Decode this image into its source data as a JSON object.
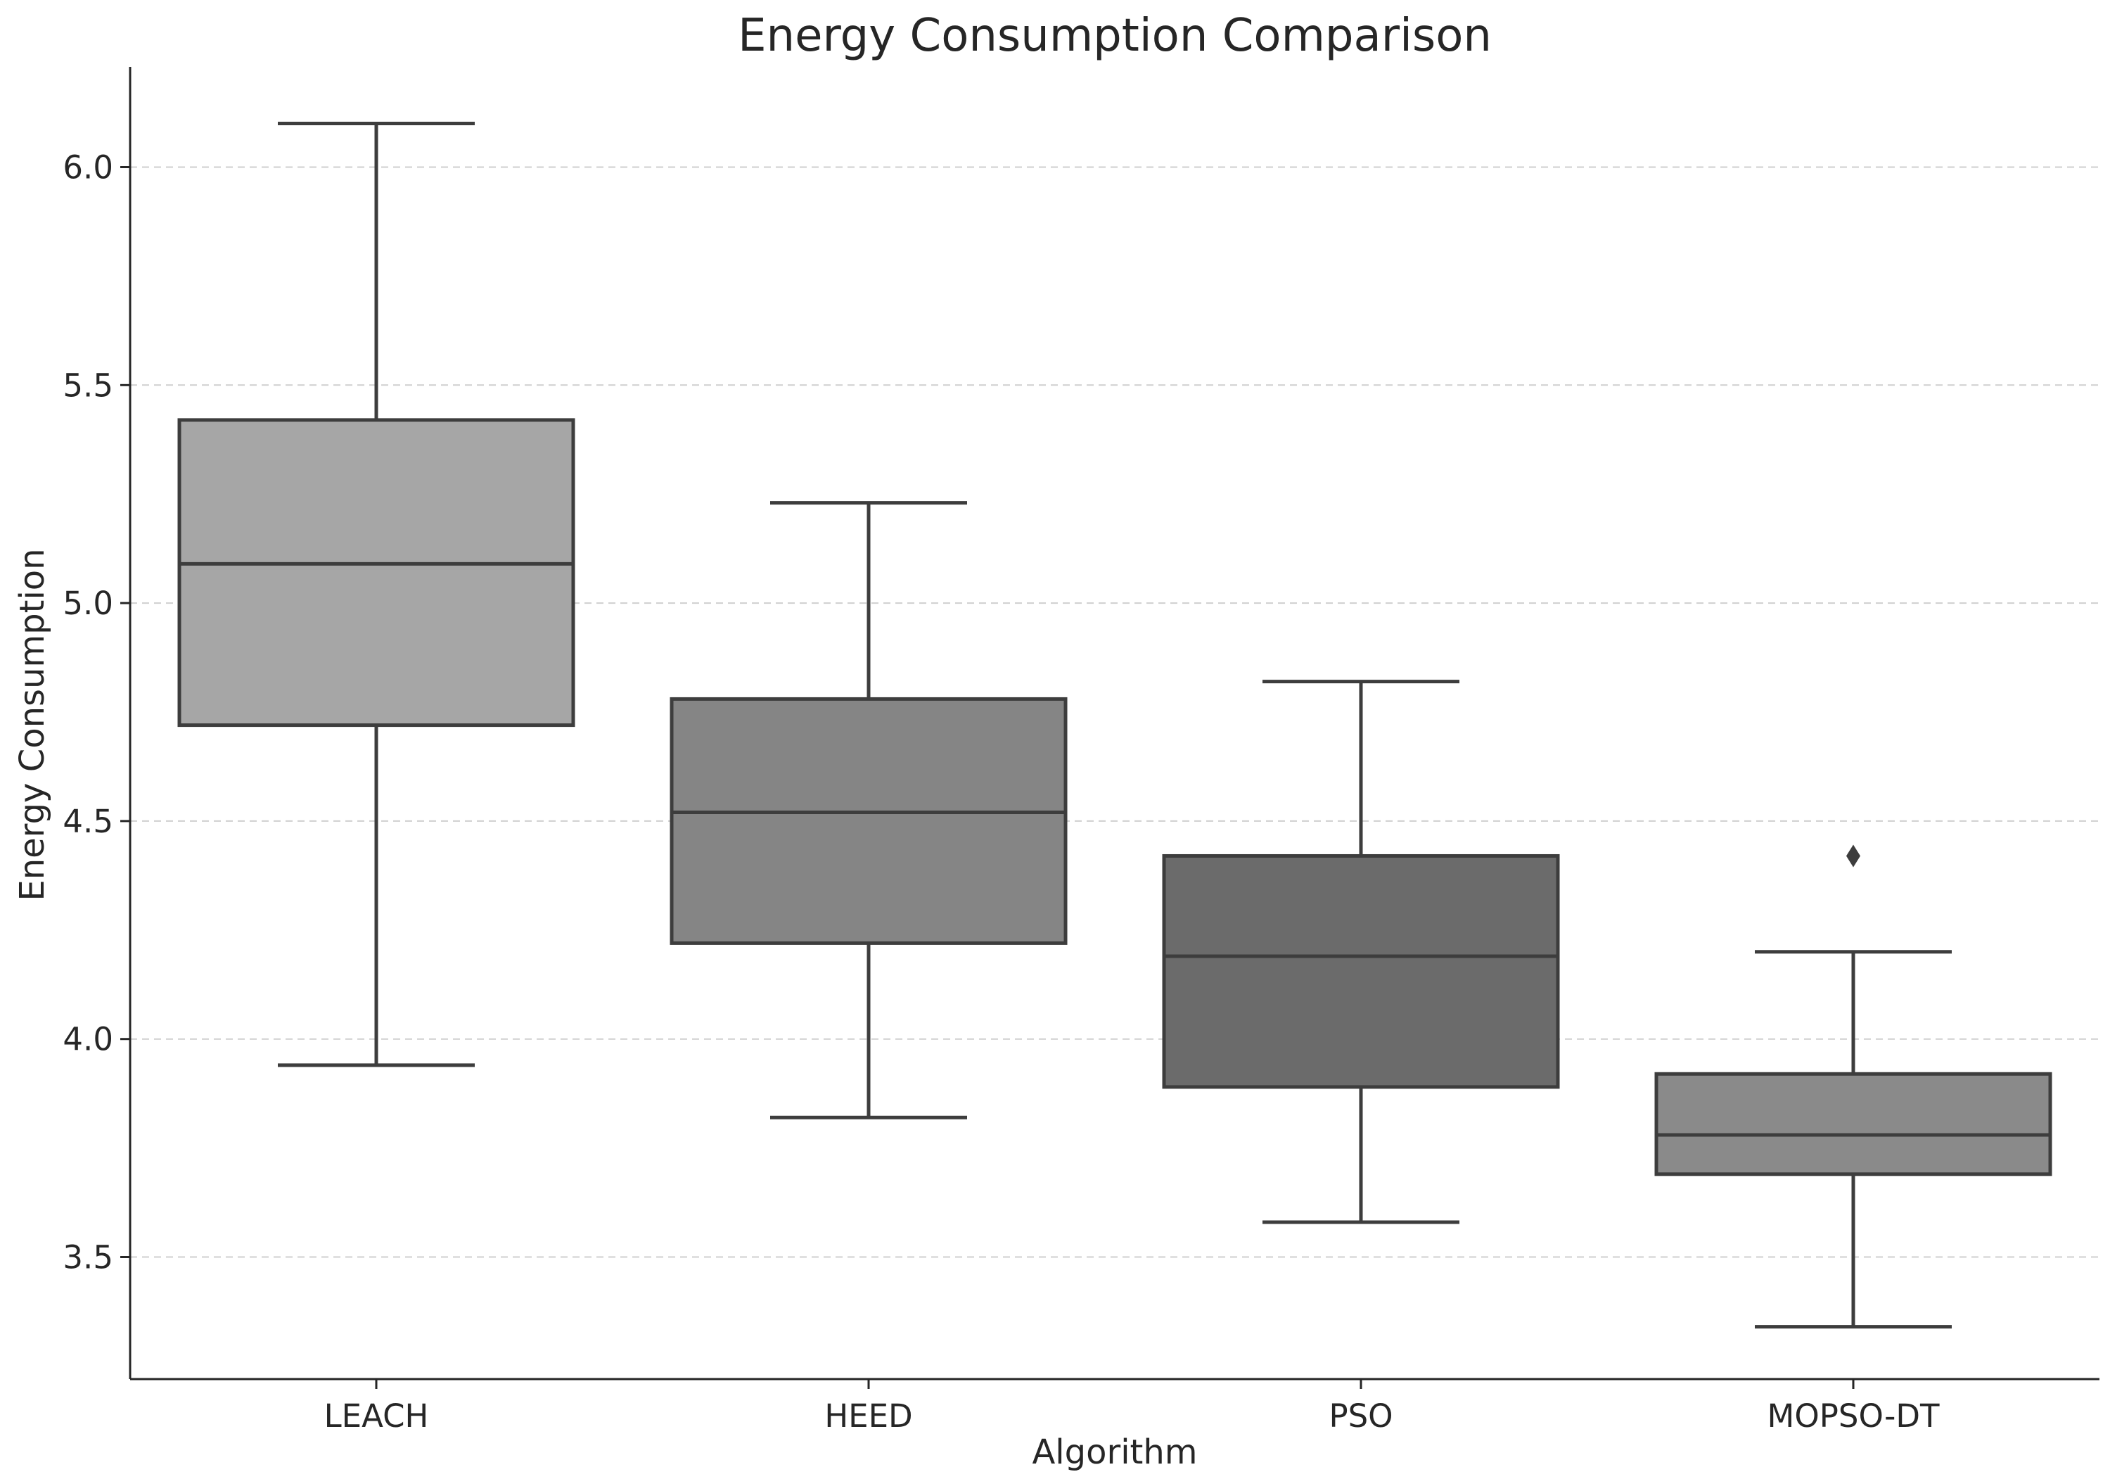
{
  "chart_data": {
    "type": "box",
    "title": "Energy Consumption Comparison",
    "xlabel": "Algorithm",
    "ylabel": "Energy Consumption",
    "ylim": [
      3.22,
      6.23
    ],
    "yticks": [
      3.5,
      4.0,
      4.5,
      5.0,
      5.5,
      6.0
    ],
    "ytick_labels": [
      "3.5",
      "4.0",
      "4.5",
      "5.0",
      "5.5",
      "6.0"
    ],
    "grid": "y-dashed",
    "categories": [
      "LEACH",
      "HEED",
      "PSO",
      "MOPSO-DT"
    ],
    "boxes": [
      {
        "min": 3.94,
        "q1": 4.72,
        "median": 5.09,
        "q3": 5.42,
        "max": 6.1,
        "outliers": [],
        "color": "#a6a6a6"
      },
      {
        "min": 3.82,
        "q1": 4.22,
        "median": 4.52,
        "q3": 4.78,
        "max": 5.23,
        "outliers": [],
        "color": "#858585"
      },
      {
        "min": 3.58,
        "q1": 3.89,
        "median": 4.19,
        "q3": 4.42,
        "max": 4.82,
        "outliers": [],
        "color": "#6b6b6b"
      },
      {
        "min": 3.34,
        "q1": 3.69,
        "median": 3.78,
        "q3": 3.92,
        "max": 4.2,
        "outliers": [
          4.42
        ],
        "color": "#8a8a8a"
      }
    ]
  }
}
